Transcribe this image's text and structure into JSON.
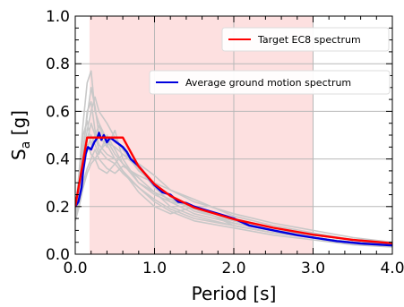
{
  "chart_data": {
    "type": "line",
    "xlabel": "Period [s]",
    "ylabel": {
      "base": "S",
      "sub": "a",
      "unit": " [g]"
    },
    "xlim": [
      0,
      4.0
    ],
    "ylim": [
      0,
      1.0
    ],
    "xticks": [
      {
        "value": 0.0,
        "label": "0.0"
      },
      {
        "value": 1.0,
        "label": "1.0"
      },
      {
        "value": 2.0,
        "label": "2.0"
      },
      {
        "value": 3.0,
        "label": "3.0"
      },
      {
        "value": 4.0,
        "label": "4.0"
      }
    ],
    "yticks": [
      {
        "value": 0.0,
        "label": "0.0"
      },
      {
        "value": 0.2,
        "label": "0.2"
      },
      {
        "value": 0.4,
        "label": "0.4"
      },
      {
        "value": 0.6,
        "label": "0.6"
      },
      {
        "value": 0.8,
        "label": "0.8"
      },
      {
        "value": 1.0,
        "label": "1.0"
      }
    ],
    "grid": true,
    "shaded_band": {
      "x_start": 0.18,
      "x_end": 3.0,
      "color": "#fde0e0"
    },
    "colors": {
      "target": "#ff0000",
      "average": "#0000dd",
      "records": "#c8c8c8"
    },
    "series": [
      {
        "name": "Target EC8 spectrum",
        "role": "target",
        "x": [
          0,
          0.15,
          0.6,
          0.8,
          1.0,
          1.2,
          1.5,
          2.0,
          2.5,
          3.0,
          3.5,
          4.0
        ],
        "y": [
          0.2,
          0.49,
          0.49,
          0.368,
          0.294,
          0.245,
          0.196,
          0.147,
          0.111,
          0.082,
          0.06,
          0.046
        ]
      },
      {
        "name": "Average ground motion spectrum",
        "role": "average",
        "x": [
          0,
          0.04,
          0.08,
          0.1,
          0.13,
          0.16,
          0.2,
          0.24,
          0.28,
          0.3,
          0.33,
          0.36,
          0.4,
          0.44,
          0.48,
          0.52,
          0.56,
          0.6,
          0.65,
          0.7,
          0.8,
          0.9,
          1.0,
          1.1,
          1.2,
          1.3,
          1.4,
          1.5,
          1.6,
          1.7,
          1.8,
          2.0,
          2.2,
          2.5,
          2.8,
          3.0,
          3.3,
          3.6,
          4.0
        ],
        "y": [
          0.2,
          0.22,
          0.28,
          0.35,
          0.42,
          0.45,
          0.44,
          0.47,
          0.49,
          0.51,
          0.48,
          0.5,
          0.47,
          0.49,
          0.48,
          0.47,
          0.46,
          0.45,
          0.43,
          0.4,
          0.37,
          0.33,
          0.29,
          0.26,
          0.25,
          0.22,
          0.215,
          0.2,
          0.19,
          0.18,
          0.17,
          0.15,
          0.12,
          0.1,
          0.08,
          0.07,
          0.055,
          0.045,
          0.037
        ]
      },
      {
        "role": "record",
        "x": [
          0,
          0.05,
          0.1,
          0.15,
          0.2,
          0.25,
          0.3,
          0.4,
          0.5,
          0.6,
          0.8,
          1.0,
          1.2,
          1.5,
          2.0,
          2.5,
          3.0,
          3.5,
          4.0
        ],
        "y": [
          0.17,
          0.35,
          0.55,
          0.72,
          0.77,
          0.6,
          0.55,
          0.48,
          0.42,
          0.38,
          0.32,
          0.26,
          0.23,
          0.19,
          0.13,
          0.1,
          0.08,
          0.06,
          0.05
        ]
      },
      {
        "role": "record",
        "x": [
          0,
          0.05,
          0.1,
          0.15,
          0.2,
          0.25,
          0.3,
          0.4,
          0.5,
          0.6,
          0.8,
          1.0,
          1.2,
          1.5,
          2.0,
          2.5,
          3.0,
          3.5,
          4.0
        ],
        "y": [
          0.15,
          0.3,
          0.44,
          0.58,
          0.7,
          0.62,
          0.5,
          0.45,
          0.52,
          0.4,
          0.3,
          0.26,
          0.2,
          0.16,
          0.12,
          0.09,
          0.07,
          0.05,
          0.04
        ]
      },
      {
        "role": "record",
        "x": [
          0,
          0.05,
          0.1,
          0.15,
          0.2,
          0.25,
          0.3,
          0.4,
          0.5,
          0.6,
          0.8,
          1.0,
          1.2,
          1.5,
          2.0,
          2.5,
          3.0,
          3.5,
          4.0
        ],
        "y": [
          0.16,
          0.28,
          0.4,
          0.52,
          0.6,
          0.66,
          0.6,
          0.55,
          0.49,
          0.44,
          0.35,
          0.3,
          0.24,
          0.18,
          0.14,
          0.1,
          0.08,
          0.06,
          0.04
        ]
      },
      {
        "role": "record",
        "x": [
          0,
          0.05,
          0.1,
          0.15,
          0.2,
          0.25,
          0.3,
          0.4,
          0.5,
          0.6,
          0.8,
          1.0,
          1.2,
          1.5,
          2.0,
          2.5,
          3.0,
          3.5,
          4.0
        ],
        "y": [
          0.18,
          0.24,
          0.34,
          0.44,
          0.5,
          0.46,
          0.42,
          0.5,
          0.44,
          0.38,
          0.3,
          0.25,
          0.22,
          0.2,
          0.15,
          0.11,
          0.08,
          0.06,
          0.05
        ]
      },
      {
        "role": "record",
        "x": [
          0,
          0.05,
          0.1,
          0.15,
          0.2,
          0.25,
          0.3,
          0.4,
          0.5,
          0.6,
          0.8,
          1.0,
          1.2,
          1.5,
          2.0,
          2.5,
          3.0,
          3.5,
          4.0
        ],
        "y": [
          0.16,
          0.26,
          0.38,
          0.46,
          0.42,
          0.4,
          0.36,
          0.34,
          0.38,
          0.42,
          0.36,
          0.28,
          0.22,
          0.17,
          0.13,
          0.1,
          0.07,
          0.05,
          0.04
        ]
      },
      {
        "role": "record",
        "x": [
          0,
          0.05,
          0.1,
          0.15,
          0.2,
          0.25,
          0.3,
          0.4,
          0.5,
          0.6,
          0.8,
          1.0,
          1.2,
          1.5,
          2.0,
          2.5,
          3.0,
          3.5,
          4.0
        ],
        "y": [
          0.15,
          0.22,
          0.3,
          0.36,
          0.4,
          0.44,
          0.4,
          0.36,
          0.34,
          0.37,
          0.33,
          0.3,
          0.27,
          0.22,
          0.17,
          0.13,
          0.1,
          0.07,
          0.05
        ]
      },
      {
        "role": "record",
        "x": [
          0,
          0.05,
          0.1,
          0.15,
          0.2,
          0.25,
          0.3,
          0.4,
          0.5,
          0.6,
          0.8,
          1.0,
          1.2,
          1.5,
          2.0,
          2.5,
          3.0,
          3.5,
          4.0
        ],
        "y": [
          0.17,
          0.32,
          0.5,
          0.56,
          0.46,
          0.5,
          0.54,
          0.46,
          0.4,
          0.35,
          0.28,
          0.22,
          0.18,
          0.14,
          0.11,
          0.08,
          0.06,
          0.04,
          0.03
        ]
      },
      {
        "role": "record",
        "x": [
          0,
          0.05,
          0.1,
          0.15,
          0.2,
          0.25,
          0.3,
          0.4,
          0.5,
          0.6,
          0.8,
          1.0,
          1.2,
          1.5,
          2.0,
          2.5,
          3.0,
          3.5,
          4.0
        ],
        "y": [
          0.14,
          0.2,
          0.28,
          0.34,
          0.38,
          0.4,
          0.43,
          0.47,
          0.45,
          0.42,
          0.38,
          0.33,
          0.27,
          0.23,
          0.16,
          0.12,
          0.09,
          0.06,
          0.05
        ]
      },
      {
        "role": "record",
        "x": [
          0,
          0.05,
          0.1,
          0.15,
          0.2,
          0.25,
          0.3,
          0.4,
          0.5,
          0.6,
          0.8,
          1.0,
          1.2,
          1.5,
          2.0,
          2.5,
          3.0,
          3.5,
          4.0
        ],
        "y": [
          0.18,
          0.3,
          0.42,
          0.6,
          0.64,
          0.52,
          0.46,
          0.42,
          0.4,
          0.35,
          0.26,
          0.2,
          0.17,
          0.2,
          0.12,
          0.09,
          0.07,
          0.05,
          0.04
        ]
      },
      {
        "role": "record",
        "x": [
          0,
          0.05,
          0.1,
          0.15,
          0.2,
          0.25,
          0.3,
          0.4,
          0.5,
          0.6,
          0.8,
          1.0,
          1.2,
          1.5,
          2.0,
          2.5,
          3.0,
          3.5,
          4.0
        ],
        "y": [
          0.16,
          0.25,
          0.36,
          0.48,
          0.55,
          0.5,
          0.44,
          0.4,
          0.38,
          0.34,
          0.28,
          0.23,
          0.19,
          0.15,
          0.12,
          0.09,
          0.07,
          0.05,
          0.04
        ]
      }
    ]
  }
}
